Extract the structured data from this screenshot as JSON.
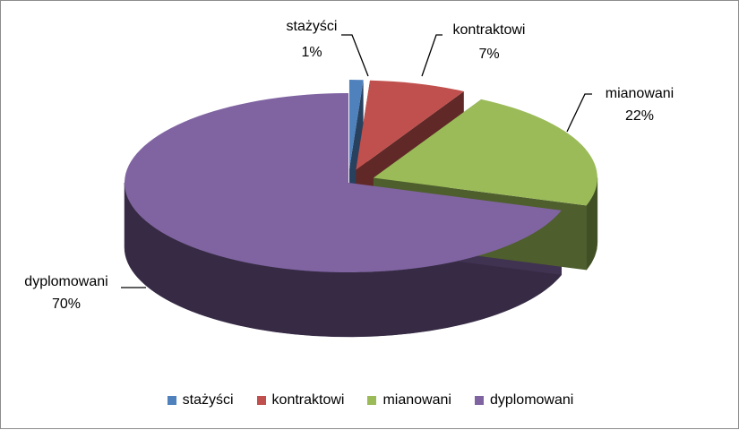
{
  "chart_data": {
    "type": "pie",
    "style": "3d-exploded",
    "legend_position": "bottom",
    "slices": [
      {
        "label": "stażyści",
        "value": 1,
        "display": "1%",
        "color": "#4F81BD"
      },
      {
        "label": "kontraktowi",
        "value": 7,
        "display": "7%",
        "color": "#C0504D"
      },
      {
        "label": "mianowani",
        "value": 22,
        "display": "22%",
        "color": "#9BBB59"
      },
      {
        "label": "dyplomowani",
        "value": 70,
        "display": "70%",
        "color": "#8064A2"
      }
    ]
  }
}
